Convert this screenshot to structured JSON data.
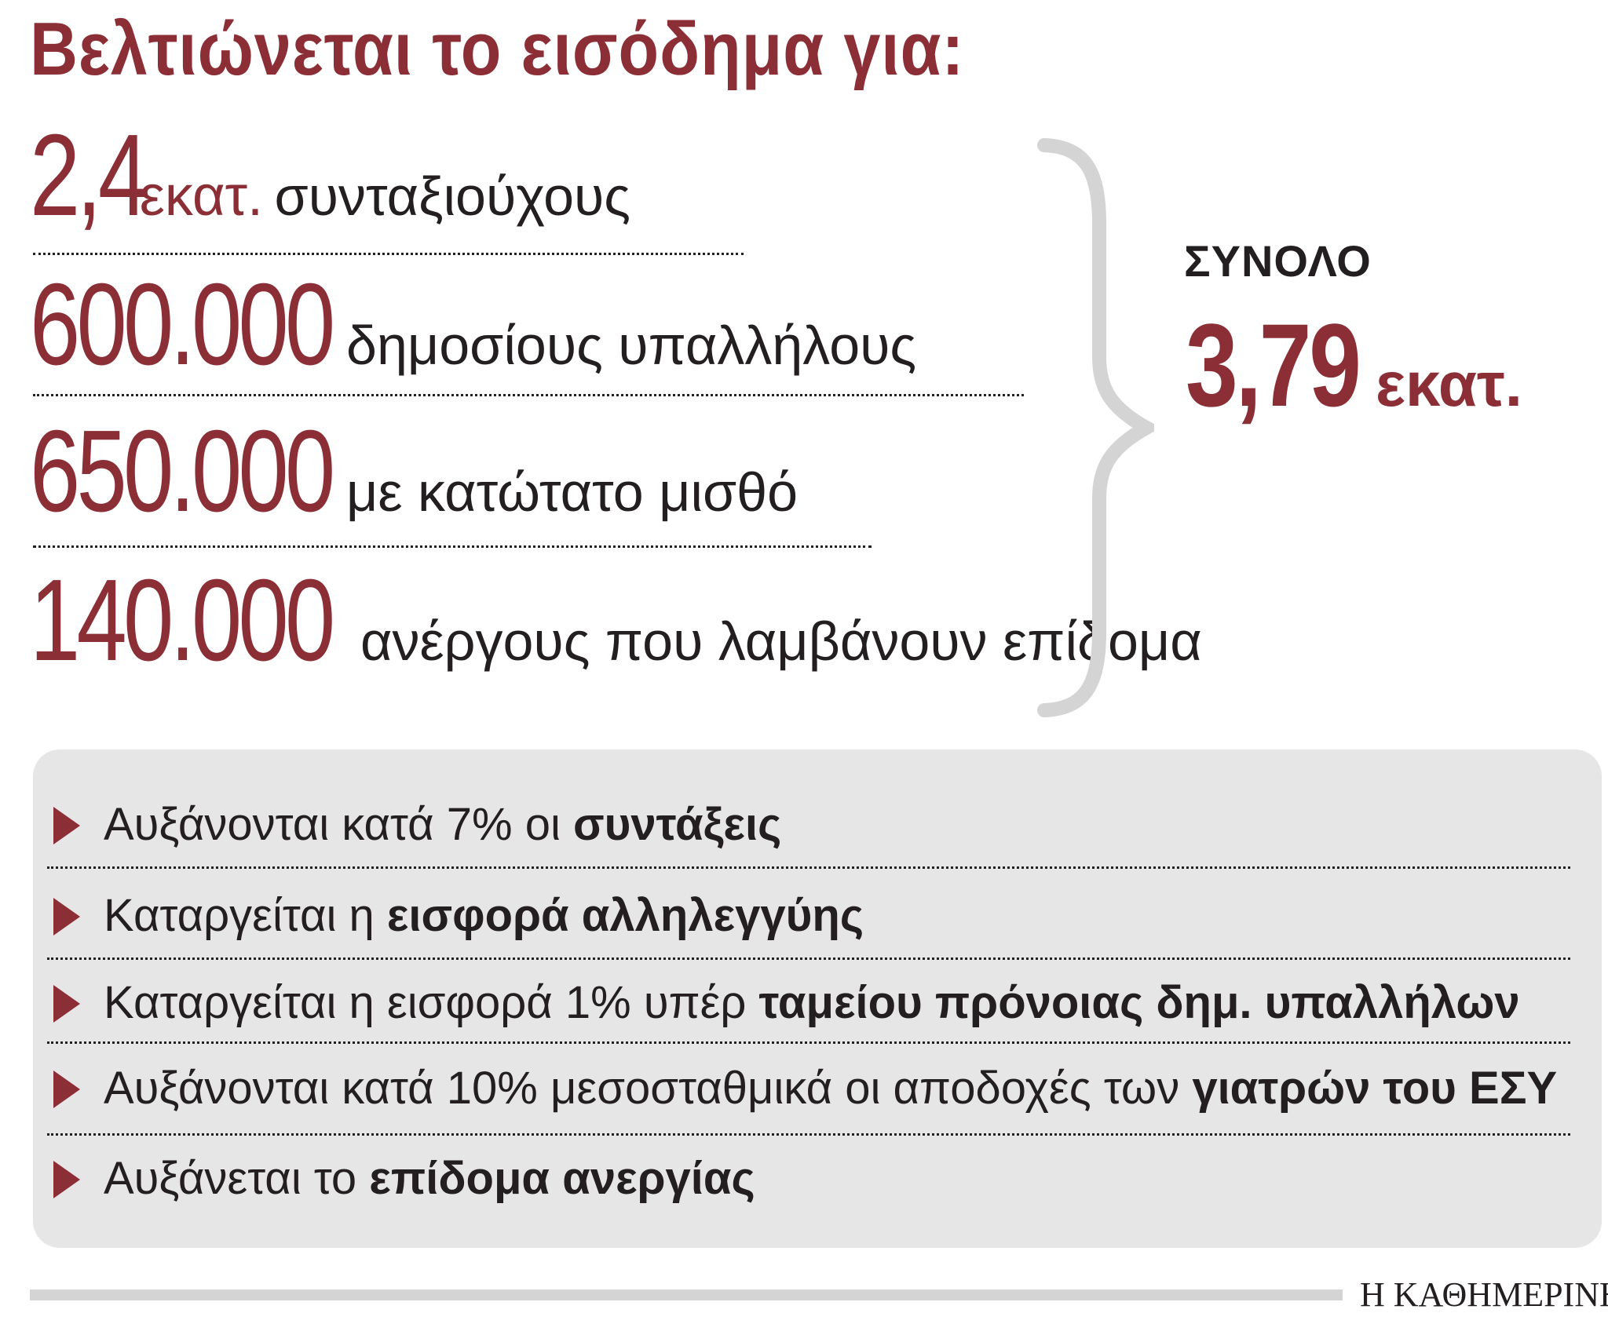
{
  "title": "Βελτιώνεται το εισόδημα για:",
  "groups": [
    {
      "number": "2,4",
      "unit": "εκατ.",
      "label": "συνταξιούχους"
    },
    {
      "number": "600.000",
      "unit": "",
      "label": "δημοσίους υπαλλήλους"
    },
    {
      "number": "650.000",
      "unit": "",
      "label": "με κατώτατο μισθό"
    },
    {
      "number": "140.000",
      "unit": "",
      "label": "ανέργους που λαμβάνουν επίδομα"
    }
  ],
  "total": {
    "label": "ΣΥΝΟΛΟ",
    "number": "3,79",
    "unit": "εκατ."
  },
  "measures": [
    {
      "text": "Αυξάνονται κατά 7% οι ",
      "bold": "συντάξεις"
    },
    {
      "text": "Καταργείται η ",
      "bold": "εισφορά αλληλεγγύης"
    },
    {
      "text": "Καταργείται η εισφορά 1% υπέρ ",
      "bold": "ταμείου πρόνοιας δημ. υπαλλήλων"
    },
    {
      "text": "Αυξάνονται κατά 10% μεσοσταθμικά οι αποδοχές των ",
      "bold": "γιατρών του ΕΣΥ"
    },
    {
      "text": "Αυξάνεται το ",
      "bold": "επίδομα ανεργίας"
    }
  ],
  "source": "Η ΚΑΘΗΜΕΡΙΝΗ",
  "colors": {
    "accent": "#8b2e36",
    "text": "#231f20",
    "panel": "#e6e6e7",
    "brace": "#d4d4d5"
  }
}
